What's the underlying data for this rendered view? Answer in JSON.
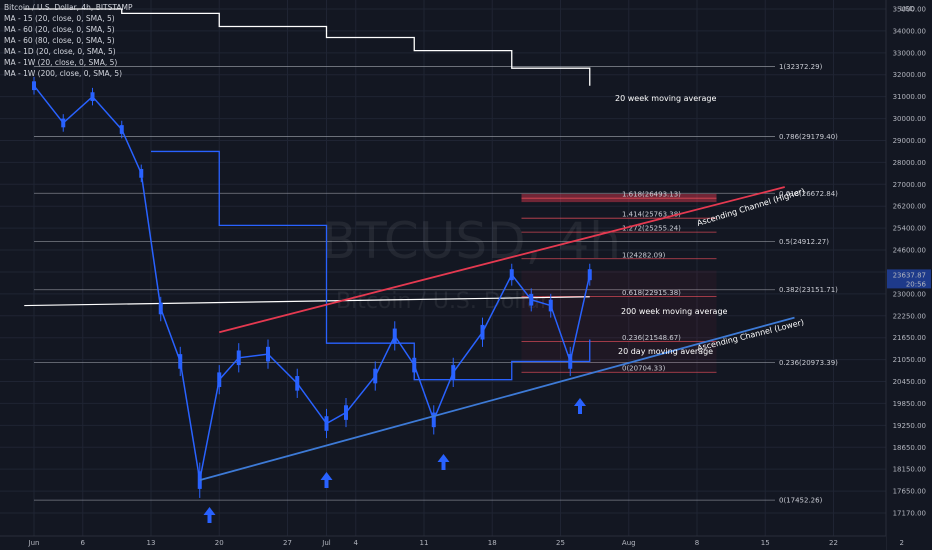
{
  "header": {
    "title": "Bitcoin / U.S. Dollar, 4h, BITSTAMP",
    "indicators": [
      "MA - 15 (20, close, 0, SMA, 5)",
      "MA - 60 (20, close, 0, SMA, 5)",
      "MA - 60 (80, close, 0, SMA, 5)",
      "MA - 1D (20, close, 0, SMA, 5)",
      "MA - 1W (20, close, 0, SMA, 5)",
      "MA - 1W (200, close, 0, SMA, 5)"
    ]
  },
  "watermark": {
    "symbol": "BTCUSD, 4h",
    "name": "Bitcoin / U.S. Dollar"
  },
  "colors": {
    "background": "#131722",
    "candle": "#2962ff",
    "ascending_higher": "#e53950",
    "ascending_lower": "#3d7ad6",
    "fib_line": "#9598a1",
    "arrow": "#2962ff",
    "price_badge": "#1e3a8a"
  },
  "chart_data": {
    "type": "line",
    "title": "Bitcoin / U.S. Dollar, 4h, BITSTAMP",
    "currency": "USD",
    "x_ticks": [
      "Jun",
      "6",
      "13",
      "20",
      "27",
      "Jul",
      "4",
      "11",
      "18",
      "25",
      "Aug",
      "8",
      "15",
      "22",
      "2"
    ],
    "y_ticks": [
      35000,
      34000,
      33000,
      32000,
      31000,
      30000,
      29000,
      28000,
      27000,
      26200,
      25400,
      24600,
      23800,
      23000,
      22250,
      21650,
      21050,
      20450,
      19850,
      19250,
      18650,
      18150,
      17650,
      17170
    ],
    "last_price": {
      "value": "23637.87",
      "countdown": "20:56"
    },
    "fib_levels": [
      {
        "label": "1(32372.29)",
        "value": 32372.29
      },
      {
        "label": "0.786(29179.40)",
        "value": 29179.4
      },
      {
        "label": "0.618(26672.84)",
        "value": 26672.84
      },
      {
        "label": "0.5(24912.27)",
        "value": 24912.27
      },
      {
        "label": "0.382(23151.71)",
        "value": 23151.71
      },
      {
        "label": "0.236(20973.39)",
        "value": 20973.39
      },
      {
        "label": "0(17452.26)",
        "value": 17452.26
      }
    ],
    "fib_ext_levels": [
      {
        "label": "1.618(26493.13)",
        "value": 26493.13
      },
      {
        "label": "1.414(25763.38)",
        "value": 25763.38
      },
      {
        "label": "1.272(25255.24)",
        "value": 25255.24
      },
      {
        "label": "1(24282.09)",
        "value": 24282.09
      },
      {
        "label": "0.618(22915.38)",
        "value": 22915.38
      },
      {
        "label": "0.236(21548.67)",
        "value": 21548.67
      },
      {
        "label": "0(20704.33)",
        "value": 20704.33
      }
    ],
    "series": [
      {
        "name": "BTCUSD",
        "x": [
          "Jun 1",
          "Jun 4",
          "Jun 7",
          "Jun 10",
          "Jun 12",
          "Jun 14",
          "Jun 16",
          "Jun 18",
          "Jun 20",
          "Jun 22",
          "Jun 25",
          "Jun 28",
          "Jul 1",
          "Jul 3",
          "Jul 6",
          "Jul 8",
          "Jul 10",
          "Jul 12",
          "Jul 14",
          "Jul 17",
          "Jul 20",
          "Jul 22",
          "Jul 24",
          "Jul 26",
          "Jul 28"
        ],
        "values": [
          31500,
          29800,
          31000,
          29500,
          27500,
          22500,
          21000,
          17900,
          20500,
          21100,
          21200,
          20400,
          19300,
          19600,
          20600,
          21700,
          20900,
          19400,
          20700,
          21800,
          23700,
          22800,
          22600,
          21000,
          23700
        ]
      },
      {
        "name": "20 week moving average",
        "x": [
          "May 31",
          "Jun 10",
          "Jun 20",
          "Jul 1",
          "Jul 10",
          "Jul 20",
          "Jul 28"
        ],
        "values": [
          35000,
          34800,
          34200,
          33700,
          33100,
          32300,
          31500
        ]
      },
      {
        "name": "200 week moving average",
        "x": [
          "May 31",
          "Jul 28"
        ],
        "values": [
          22600,
          22900
        ]
      },
      {
        "name": "20 day moving average",
        "x": [
          "Jun 13",
          "Jun 20",
          "Jul 1",
          "Jul 10",
          "Jul 20",
          "Jul 28"
        ],
        "values": [
          28500,
          25500,
          21500,
          20500,
          21000,
          21600
        ]
      }
    ],
    "channels": [
      {
        "name": "Ascending Channel (Higher)",
        "from": [
          "Jun 20",
          21800
        ],
        "to": [
          "Aug 17",
          26900
        ]
      },
      {
        "name": "Ascending Channel (Lower)",
        "from": [
          "Jun 18",
          17900
        ],
        "to": [
          "Aug 18",
          22200
        ]
      }
    ]
  },
  "annotations": {
    "ma20w": "20 week moving average",
    "ma200w": "200 week moving average",
    "ma20d": "20 day moving average",
    "ch_high": "Ascending Channel (Higher)",
    "ch_low": "Ascending Channel (Lower)"
  }
}
